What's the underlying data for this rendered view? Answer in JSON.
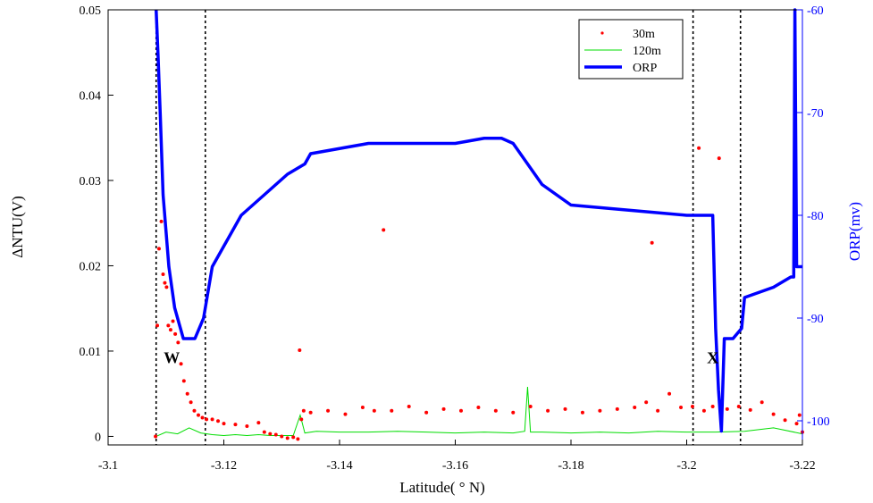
{
  "chart_data": {
    "type": "line",
    "title": "",
    "xlabel": "Latitude( ° N)",
    "ylabel": "ΔNTU(V)",
    "y2label": "ORP(mv)",
    "xlim": [
      -3.1,
      -3.22
    ],
    "ylim": [
      -0.001,
      0.05
    ],
    "y2lim": [
      -60,
      -100
    ],
    "xticks": [
      "-3.1",
      "-3.12",
      "-3.14",
      "-3.16",
      "-3.18",
      "-3.2",
      "-3.22"
    ],
    "yticks": [
      "0",
      "0.01",
      "0.02",
      "0.03",
      "0.04",
      "0.05"
    ],
    "y2ticks": [
      "-60",
      "-70",
      "-80",
      "-90",
      "-100"
    ],
    "legend_position": "top-right",
    "colors": {
      "series_30m": "#ff0000",
      "series_120m": "#00dd00",
      "series_orp": "#0000ff",
      "right_axis": "#0000ff"
    },
    "annotations": [
      {
        "text": "W",
        "x": -3.111,
        "y": 0.0092
      },
      {
        "text": "X",
        "x": -3.2045,
        "y": 0.0092
      }
    ],
    "vertical_lines": [
      -3.1083,
      -3.1168,
      -3.2011,
      -3.2093
    ],
    "series": [
      {
        "name": "30m",
        "style": "dots",
        "x": [
          -3.1082,
          -3.1085,
          -3.1088,
          -3.1092,
          -3.1095,
          -3.1098,
          -3.1101,
          -3.1104,
          -3.1108,
          -3.1112,
          -3.1116,
          -3.1121,
          -3.1126,
          -3.1131,
          -3.1137,
          -3.1143,
          -3.1149,
          -3.1156,
          -3.1163,
          -3.117,
          -3.118,
          -3.119,
          -3.12,
          -3.122,
          -3.124,
          -3.126,
          -3.127,
          -3.128,
          -3.129,
          -3.13,
          -3.131,
          -3.132,
          -3.1328,
          -3.1331,
          -3.1334,
          -3.1338,
          -3.135,
          -3.138,
          -3.141,
          -3.144,
          -3.146,
          -3.1476,
          -3.149,
          -3.152,
          -3.155,
          -3.158,
          -3.161,
          -3.164,
          -3.167,
          -3.17,
          -3.173,
          -3.176,
          -3.179,
          -3.182,
          -3.185,
          -3.188,
          -3.191,
          -3.193,
          -3.194,
          -3.195,
          -3.197,
          -3.199,
          -3.201,
          -3.2021,
          -3.203,
          -3.2045,
          -3.2056,
          -3.207,
          -3.209,
          -3.211,
          -3.213,
          -3.215,
          -3.217,
          -3.219,
          -3.2195,
          -3.22
        ],
        "values": [
          0.0,
          0.013,
          0.022,
          0.0252,
          0.019,
          0.018,
          0.0175,
          0.013,
          0.0125,
          0.0135,
          0.012,
          0.011,
          0.0085,
          0.0065,
          0.005,
          0.004,
          0.003,
          0.0025,
          0.0022,
          0.002,
          0.002,
          0.0018,
          0.0015,
          0.0014,
          0.0012,
          0.0016,
          0.0005,
          0.0003,
          0.0002,
          0.0,
          -0.0002,
          -0.0001,
          -0.0003,
          0.0101,
          0.002,
          0.003,
          0.0028,
          0.003,
          0.0026,
          0.0034,
          0.003,
          0.0242,
          0.003,
          0.0035,
          0.0028,
          0.0032,
          0.003,
          0.0034,
          0.003,
          0.0028,
          0.0035,
          0.003,
          0.0032,
          0.0028,
          0.003,
          0.0032,
          0.0034,
          0.004,
          0.0227,
          0.003,
          0.005,
          0.0034,
          0.0035,
          0.0338,
          0.003,
          0.0035,
          0.0326,
          0.0032,
          0.0035,
          0.0031,
          0.004,
          0.0026,
          0.0019,
          0.0015,
          0.0025,
          0.0005
        ]
      },
      {
        "name": "120m",
        "style": "line",
        "x": [
          -3.1083,
          -3.11,
          -3.112,
          -3.114,
          -3.116,
          -3.118,
          -3.12,
          -3.122,
          -3.124,
          -3.126,
          -3.128,
          -3.13,
          -3.132,
          -3.1332,
          -3.134,
          -3.136,
          -3.14,
          -3.145,
          -3.15,
          -3.155,
          -3.16,
          -3.165,
          -3.17,
          -3.172,
          -3.1725,
          -3.173,
          -3.175,
          -3.18,
          -3.185,
          -3.19,
          -3.195,
          -3.2,
          -3.205,
          -3.21,
          -3.215,
          -3.22
        ],
        "values": [
          0.0,
          0.0005,
          0.0003,
          0.001,
          0.0004,
          0.0002,
          0.0001,
          0.0002,
          0.0001,
          0.0002,
          0.0001,
          0.0001,
          0.0001,
          0.0025,
          0.0004,
          0.0006,
          0.0005,
          0.0005,
          0.0006,
          0.0005,
          0.0004,
          0.0005,
          0.0004,
          0.0006,
          0.0058,
          0.0005,
          0.0005,
          0.0004,
          0.0005,
          0.0004,
          0.0006,
          0.0005,
          0.0005,
          0.0006,
          0.001,
          0.0003
        ]
      },
      {
        "name": "ORP",
        "axis": "right",
        "style": "thick-line",
        "x": [
          -3.1083,
          -3.1086,
          -3.109,
          -3.1095,
          -3.1105,
          -3.1115,
          -3.1125,
          -3.113,
          -3.115,
          -3.1165,
          -3.118,
          -3.12,
          -3.123,
          -3.127,
          -3.131,
          -3.134,
          -3.135,
          -3.14,
          -3.145,
          -3.15,
          -3.16,
          -3.165,
          -3.168,
          -3.17,
          -3.175,
          -3.18,
          -3.19,
          -3.2,
          -3.2045,
          -3.205,
          -3.2055,
          -3.206,
          -3.2065,
          -3.208,
          -3.2095,
          -3.21,
          -3.215,
          -3.218,
          -3.2185,
          -3.2187,
          -3.219,
          -3.22
        ],
        "values": [
          -60,
          -64,
          -70,
          -78,
          -85,
          -89,
          -91,
          -92,
          -92,
          -90,
          -85,
          -83,
          -80,
          -78,
          -76,
          -75,
          -74,
          -73.5,
          -73,
          -73,
          -73,
          -72.5,
          -72.5,
          -73,
          -77,
          -79,
          -79.5,
          -80,
          -80,
          -91,
          -97,
          -101,
          -92,
          -92,
          -91,
          -88,
          -87,
          -86,
          -86,
          -60,
          -85,
          -85
        ]
      }
    ]
  }
}
